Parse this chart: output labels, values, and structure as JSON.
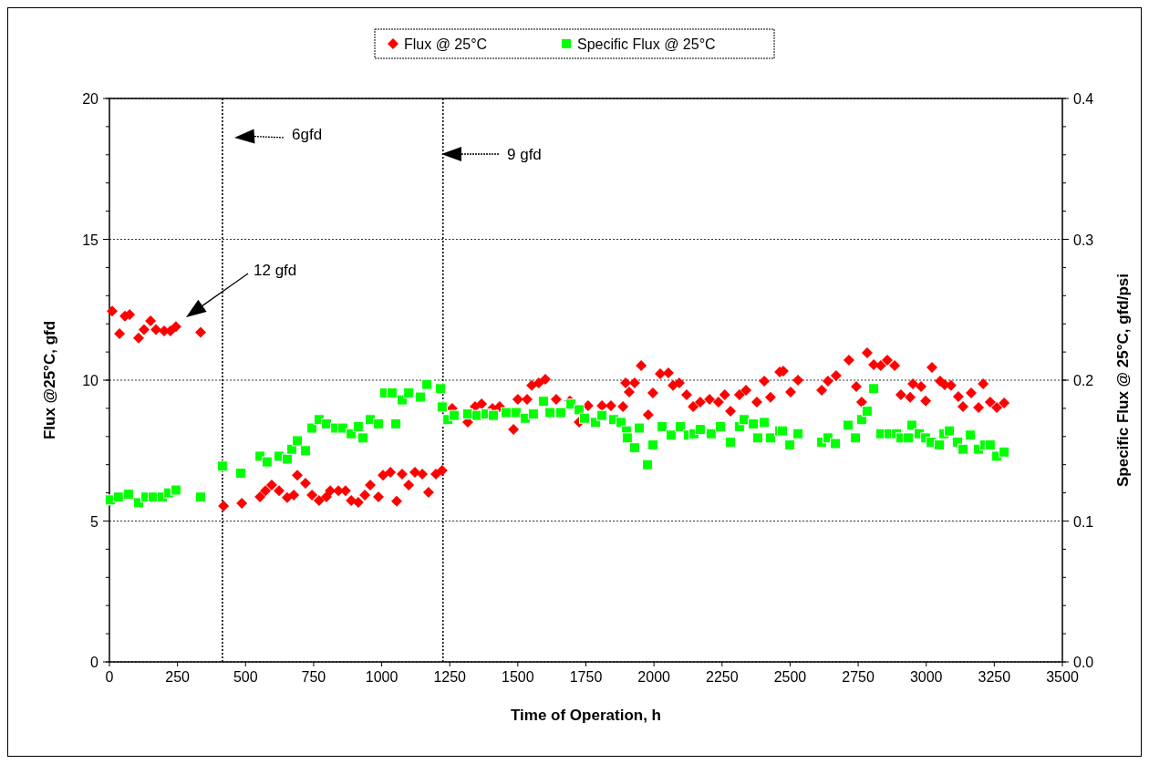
{
  "chart_data": {
    "type": "scatter",
    "xlabel": "Time of Operation, h",
    "ylabel": "Flux @25°C, gfd",
    "y2label": "Specific Flux @ 25°C, gfd/psi",
    "xlim": [
      0,
      3500
    ],
    "xticks": [
      0,
      250,
      500,
      750,
      1000,
      1250,
      1500,
      1750,
      2000,
      2250,
      2500,
      2750,
      3000,
      3250,
      3500
    ],
    "ylim": [
      0,
      20
    ],
    "yticks": [
      0,
      5,
      10,
      15,
      20
    ],
    "y2lim": [
      0,
      0.4
    ],
    "y2ticks": [
      {
        "value": 0,
        "label": "0.0"
      },
      {
        "value": 0.1,
        "label": "0.1"
      },
      {
        "value": 0.2,
        "label": "0.2"
      },
      {
        "value": 0.3,
        "label": "0.3"
      },
      {
        "value": 0.4,
        "label": "0.4"
      }
    ],
    "grid": "y",
    "legend": "top",
    "ref_lines": [
      {
        "axis": "x",
        "value": 415,
        "color": "#000000",
        "line_style": "dotted"
      },
      {
        "axis": "x",
        "value": 1225,
        "color": "#000000",
        "line_style": "dotted"
      }
    ],
    "annotations": [
      "6gfd",
      "9 gfd",
      "12 gfd"
    ],
    "series": [
      {
        "name": "Flux @ 25°C",
        "color": "#ff0000",
        "marker": "diamond",
        "x": [
          10,
          37,
          57,
          74,
          107,
          127,
          151,
          171,
          201,
          224,
          244,
          335,
          419,
          486,
          553,
          573,
          596,
          623,
          653,
          677,
          690,
          720,
          744,
          770,
          797,
          811,
          841,
          867,
          888,
          914,
          938,
          958,
          988,
          1005,
          1032,
          1055,
          1075,
          1099,
          1122,
          1149,
          1172,
          1199,
          1222,
          1259,
          1316,
          1343,
          1367,
          1407,
          1433,
          1484,
          1500,
          1534,
          1551,
          1577,
          1601,
          1641,
          1691,
          1725,
          1758,
          1809,
          1842,
          1886,
          1896,
          1909,
          1929,
          1953,
          1979,
          1996,
          2023,
          2053,
          2070,
          2093,
          2120,
          2144,
          2170,
          2204,
          2237,
          2260,
          2281,
          2314,
          2338,
          2378,
          2405,
          2428,
          2462,
          2475,
          2502,
          2529,
          2616,
          2639,
          2669,
          2716,
          2743,
          2763,
          2783,
          2807,
          2833,
          2857,
          2884,
          2907,
          2941,
          2951,
          2981,
          2998,
          3021,
          3051,
          3068,
          3091,
          3118,
          3135,
          3165,
          3192,
          3209,
          3235,
          3259,
          3286
        ],
        "values": [
          12.45,
          11.65,
          12.27,
          12.33,
          11.5,
          11.8,
          12.1,
          11.8,
          11.75,
          11.75,
          11.9,
          11.7,
          5.53,
          5.63,
          5.86,
          6.08,
          6.28,
          6.08,
          5.83,
          5.92,
          6.63,
          6.34,
          5.92,
          5.73,
          5.86,
          6.08,
          6.08,
          6.08,
          5.73,
          5.66,
          5.92,
          6.28,
          5.86,
          6.63,
          6.73,
          5.7,
          6.67,
          6.28,
          6.73,
          6.67,
          6.02,
          6.67,
          6.8,
          9.0,
          8.51,
          9.06,
          9.16,
          9.0,
          9.06,
          8.25,
          9.32,
          9.32,
          9.81,
          9.9,
          10.03,
          9.32,
          9.26,
          8.51,
          9.09,
          9.09,
          9.09,
          9.06,
          9.9,
          9.58,
          9.9,
          10.52,
          8.77,
          9.55,
          10.23,
          10.26,
          9.81,
          9.9,
          9.48,
          9.06,
          9.22,
          9.32,
          9.22,
          9.48,
          8.9,
          9.48,
          9.64,
          9.22,
          9.97,
          9.39,
          10.29,
          10.32,
          9.58,
          10.0,
          9.64,
          9.97,
          10.16,
          10.71,
          9.77,
          9.22,
          10.97,
          10.55,
          10.52,
          10.71,
          10.52,
          9.48,
          9.39,
          9.87,
          9.77,
          9.26,
          10.45,
          9.97,
          9.84,
          9.81,
          9.42,
          9.06,
          9.55,
          9.03,
          9.87,
          9.22,
          9.03,
          9.19
        ]
      },
      {
        "name": "Specific Flux @ 25°C",
        "color": "#00ff00",
        "marker": "square",
        "axis": "y2",
        "x": [
          3,
          33,
          70,
          107,
          134,
          161,
          194,
          218,
          244,
          335,
          415,
          482,
          553,
          579,
          623,
          653,
          670,
          690,
          720,
          744,
          770,
          797,
          831,
          857,
          888,
          914,
          931,
          958,
          988,
          1011,
          1038,
          1052,
          1075,
          1099,
          1142,
          1166,
          1216,
          1222,
          1243,
          1266,
          1316,
          1350,
          1383,
          1410,
          1457,
          1494,
          1527,
          1557,
          1594,
          1618,
          1658,
          1695,
          1725,
          1745,
          1785,
          1809,
          1852,
          1879,
          1899,
          1902,
          1929,
          1946,
          1976,
          1996,
          2030,
          2063,
          2097,
          2127,
          2147,
          2170,
          2210,
          2244,
          2281,
          2314,
          2331,
          2365,
          2381,
          2405,
          2428,
          2462,
          2472,
          2499,
          2529,
          2616,
          2639,
          2666,
          2713,
          2740,
          2763,
          2783,
          2807,
          2833,
          2864,
          2891,
          2907,
          2934,
          2947,
          2974,
          2998,
          3018,
          3048,
          3065,
          3085,
          3115,
          3135,
          3162,
          3192,
          3215,
          3235,
          3259,
          3286
        ],
        "values": [
          0.115,
          0.117,
          0.119,
          0.113,
          0.117,
          0.117,
          0.117,
          0.12,
          0.122,
          0.117,
          0.139,
          0.134,
          0.146,
          0.142,
          0.146,
          0.144,
          0.151,
          0.157,
          0.15,
          0.166,
          0.172,
          0.169,
          0.166,
          0.166,
          0.162,
          0.167,
          0.159,
          0.172,
          0.169,
          0.191,
          0.191,
          0.169,
          0.186,
          0.191,
          0.188,
          0.197,
          0.194,
          0.181,
          0.172,
          0.175,
          0.176,
          0.175,
          0.176,
          0.175,
          0.177,
          0.177,
          0.173,
          0.176,
          0.185,
          0.177,
          0.177,
          0.183,
          0.179,
          0.173,
          0.17,
          0.175,
          0.172,
          0.17,
          0.164,
          0.159,
          0.152,
          0.166,
          0.14,
          0.154,
          0.167,
          0.161,
          0.167,
          0.161,
          0.162,
          0.165,
          0.162,
          0.167,
          0.156,
          0.167,
          0.172,
          0.169,
          0.159,
          0.17,
          0.159,
          0.164,
          0.164,
          0.154,
          0.162,
          0.156,
          0.159,
          0.155,
          0.168,
          0.159,
          0.172,
          0.178,
          0.194,
          0.162,
          0.162,
          0.162,
          0.159,
          0.159,
          0.168,
          0.162,
          0.159,
          0.156,
          0.154,
          0.162,
          0.164,
          0.156,
          0.151,
          0.161,
          0.151,
          0.154,
          0.154,
          0.146,
          0.149
        ]
      }
    ]
  }
}
